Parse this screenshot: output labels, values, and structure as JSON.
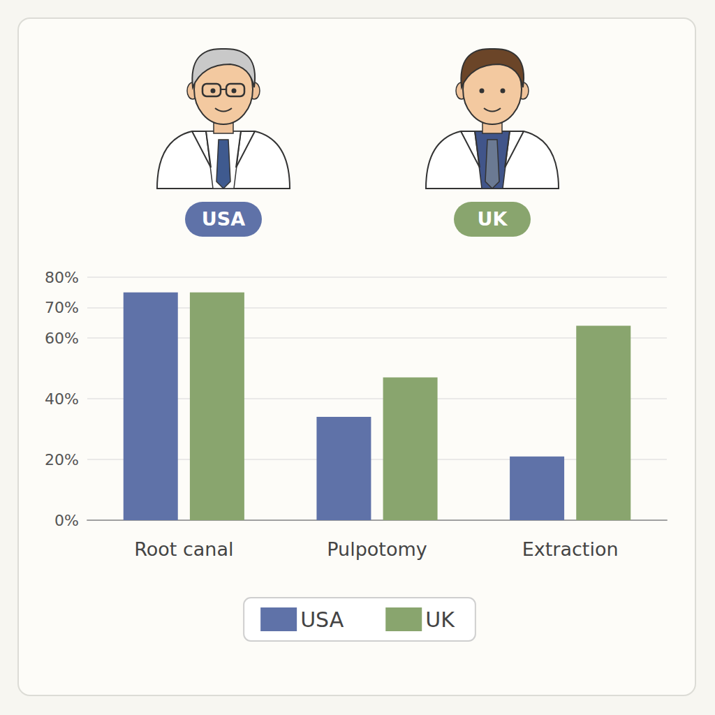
{
  "chart_data": {
    "type": "bar",
    "categories": [
      "Root canal",
      "Pulpotomy",
      "Extraction"
    ],
    "series": [
      {
        "name": "USA",
        "color": "#5f72a8",
        "values": [
          75,
          34,
          21
        ]
      },
      {
        "name": "UK",
        "color": "#89a56e",
        "values": [
          75,
          47,
          64
        ]
      }
    ],
    "annotations": [
      "USA",
      "UK"
    ],
    "ylim": [
      0,
      80
    ],
    "yticks": [
      {
        "value": 0,
        "label": "0%"
      },
      {
        "value": 20,
        "label": "20%"
      },
      {
        "value": 40,
        "label": "40%"
      },
      {
        "value": 60,
        "label": "60%"
      },
      {
        "value": 70,
        "label": "70%"
      },
      {
        "value": 80,
        "label": "80%"
      }
    ],
    "grid": true,
    "legend": "bottom"
  }
}
